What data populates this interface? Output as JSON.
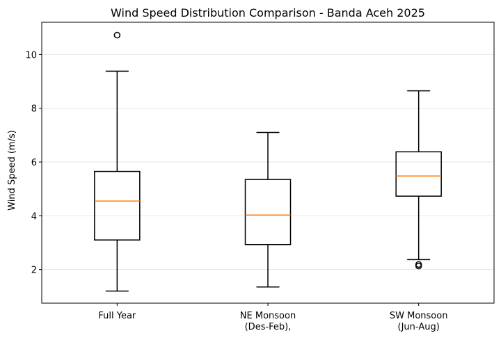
{
  "chart_data": {
    "type": "boxplot",
    "title": "Wind Speed Distribution Comparison - Banda Aceh 2025",
    "xlabel": "",
    "ylabel": "Wind Speed (m/s)",
    "ylim": [
      0.75,
      11.2
    ],
    "yticks": [
      2,
      4,
      6,
      8,
      10
    ],
    "grid": {
      "y": true,
      "x": false
    },
    "colors": {
      "box": "#000000",
      "median": "#ff7f0e",
      "grid": "#e6e6e6"
    },
    "categories": [
      {
        "lines": [
          "Full Year"
        ]
      },
      {
        "lines": [
          "NE Monsoon",
          "(Des-Feb),"
        ]
      },
      {
        "lines": [
          "SW Monsoon",
          "(Jun-Aug)"
        ]
      }
    ],
    "boxes": [
      {
        "whisker_low": 1.2,
        "q1": 3.1,
        "median": 4.55,
        "q3": 5.65,
        "whisker_high": 9.38,
        "outliers": [
          10.72
        ]
      },
      {
        "whisker_low": 1.35,
        "q1": 2.93,
        "median": 4.03,
        "q3": 5.35,
        "whisker_high": 7.1,
        "outliers": []
      },
      {
        "whisker_low": 2.37,
        "q1": 4.73,
        "median": 5.48,
        "q3": 6.38,
        "whisker_high": 8.65,
        "outliers": [
          2.19,
          2.13
        ]
      }
    ]
  }
}
